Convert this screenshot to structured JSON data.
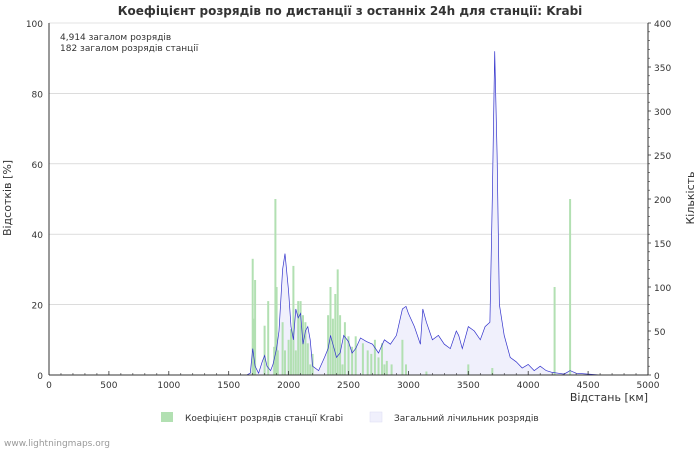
{
  "chart_data": {
    "type": "bar",
    "title": "Коефіцієнт розрядів по дистанції з останніх 24h для станції: Krabi",
    "info_lines": [
      "4,914 загалом розрядів",
      "182 загалом розрядів станції"
    ],
    "xlabel": "Відстань   [км]",
    "ylabel_left": "Відсотків   [%]",
    "ylabel_right": "Кількість",
    "xlim": [
      0,
      5000
    ],
    "ylim_left": [
      0,
      100
    ],
    "ylim_right": [
      0,
      400
    ],
    "x_ticks": [
      "0",
      "500",
      "1000",
      "1500",
      "2000",
      "2500",
      "3000",
      "3500",
      "4000",
      "4500",
      "5000"
    ],
    "y_left_ticks": [
      "0",
      "20",
      "40",
      "60",
      "80",
      "100"
    ],
    "y_right_ticks": [
      "0",
      "50",
      "100",
      "150",
      "200",
      "250",
      "300",
      "350",
      "400"
    ],
    "legend": [
      "Коефіцієнт розрядів станції Krabi",
      "Загальний лічильник розрядів"
    ],
    "colors": {
      "bars": "#b2e0b2",
      "line": "#3333cc",
      "area": "#f0f0fc",
      "grid": "#c8c8c8",
      "text": "#333333",
      "title": "#333333"
    },
    "series_ratio": {
      "name": "Коефіцієнт розрядів станції Krabi",
      "x": [
        1700,
        1710,
        1720,
        1800,
        1830,
        1880,
        1890,
        1900,
        1910,
        1950,
        1970,
        2000,
        2020,
        2040,
        2060,
        2080,
        2100,
        2120,
        2140,
        2160,
        2180,
        2200,
        2330,
        2350,
        2370,
        2390,
        2410,
        2430,
        2450,
        2470,
        2500,
        2530,
        2560,
        2620,
        2660,
        2690,
        2720,
        2750,
        2780,
        2800,
        2820,
        2860,
        2950,
        2980,
        3150,
        3500,
        3700,
        4220,
        4350
      ],
      "values": [
        33,
        16,
        27,
        14,
        21,
        8,
        50,
        25,
        7,
        15,
        7,
        10,
        13,
        31,
        7,
        21,
        21,
        17,
        15,
        9,
        3,
        6,
        17,
        25,
        16,
        23,
        30,
        17,
        3,
        15,
        11,
        8,
        11,
        9,
        7,
        6,
        10,
        5,
        9,
        3,
        4,
        3,
        10,
        3,
        1,
        3,
        2,
        25,
        50
      ]
    },
    "series_count": {
      "name": "Загальний лічильник розрядів",
      "x": [
        1650,
        1680,
        1700,
        1720,
        1750,
        1780,
        1800,
        1820,
        1850,
        1870,
        1900,
        1920,
        1950,
        1970,
        2000,
        2020,
        2040,
        2060,
        2080,
        2100,
        2120,
        2140,
        2160,
        2180,
        2200,
        2250,
        2300,
        2330,
        2350,
        2370,
        2400,
        2430,
        2460,
        2500,
        2530,
        2560,
        2600,
        2650,
        2700,
        2750,
        2800,
        2850,
        2900,
        2950,
        2980,
        3000,
        3050,
        3100,
        3120,
        3150,
        3200,
        3250,
        3300,
        3350,
        3400,
        3420,
        3450,
        3500,
        3550,
        3600,
        3640,
        3680,
        3700,
        3720,
        3740,
        3760,
        3800,
        3850,
        3900,
        3950,
        4000,
        4050,
        4100,
        4150,
        4200,
        4250,
        4300,
        4350,
        4400,
        4500,
        4600
      ],
      "values": [
        0,
        2,
        30,
        10,
        2,
        15,
        22,
        10,
        5,
        12,
        30,
        50,
        120,
        138,
        95,
        55,
        40,
        75,
        65,
        70,
        35,
        50,
        55,
        40,
        10,
        5,
        20,
        30,
        45,
        35,
        20,
        25,
        45,
        38,
        25,
        30,
        42,
        38,
        35,
        25,
        40,
        35,
        45,
        75,
        78,
        70,
        55,
        35,
        75,
        60,
        40,
        45,
        35,
        30,
        50,
        45,
        30,
        55,
        50,
        40,
        55,
        60,
        200,
        368,
        250,
        80,
        45,
        20,
        15,
        8,
        12,
        5,
        10,
        5,
        3,
        2,
        1,
        5,
        2,
        1,
        0
      ]
    }
  },
  "footer": {
    "credit": "www.lightningmaps.org"
  }
}
